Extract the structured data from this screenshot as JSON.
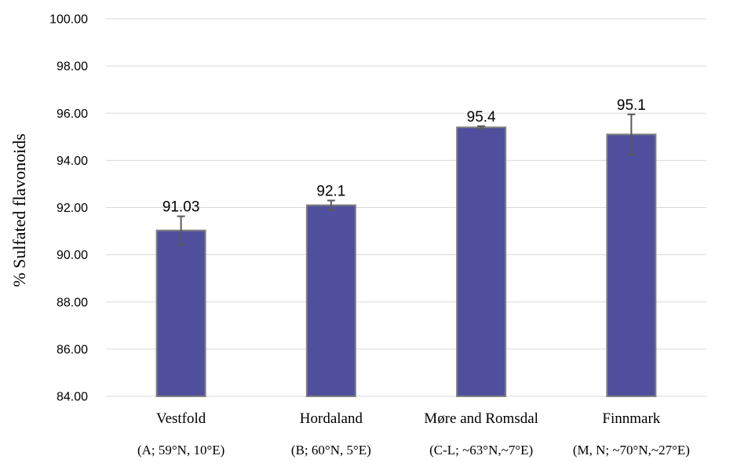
{
  "chart_data": {
    "type": "bar",
    "title": "",
    "xlabel": "",
    "ylabel": "% Sulfated flavonoids",
    "ylim": [
      84,
      100
    ],
    "ytick_step": 2,
    "ytick_labels": [
      "84.00",
      "86.00",
      "88.00",
      "90.00",
      "92.00",
      "94.00",
      "96.00",
      "98.00",
      "100.00"
    ],
    "grid": true,
    "legend": "none",
    "bar_color": "#4f4f9e",
    "bar_edge_color": "#7f7f7f",
    "errorbar_color": "#595959",
    "categories": [
      "Vestfold",
      "Hordaland",
      "Møre and Romsdal",
      "Finnmark"
    ],
    "category_sublabels": [
      "(A; 59°N, 10°E)",
      "(B; 60°N, 5°E)",
      "(C-L; ~63°N,~7°E)",
      "(M, N; ~70°N,~27°E)"
    ],
    "values": [
      91.03,
      92.1,
      95.4,
      95.1
    ],
    "value_labels": [
      "91.03",
      "92.1",
      "95.4",
      "95.1"
    ],
    "errors": [
      0.6,
      0.2,
      0.05,
      0.85
    ]
  }
}
